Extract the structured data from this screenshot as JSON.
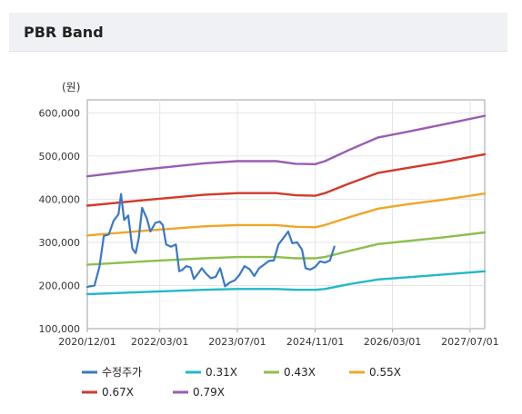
{
  "panel": {
    "title": "PBR Band"
  },
  "chart_data": {
    "type": "line",
    "unit_label": "(원)",
    "y_ticks": [
      "600,000",
      "500,000",
      "400,000",
      "300,000",
      "200,000",
      "100,000"
    ],
    "y_tick_values": [
      600000,
      500000,
      400000,
      300000,
      200000,
      100000
    ],
    "ylim": [
      100000,
      630000
    ],
    "x_ticks": [
      "2020/12/01",
      "2022/03/01",
      "2023/07/01",
      "2024/11/01",
      "2026/03/01",
      "2027/07/01"
    ],
    "x_tick_values": [
      "2020-12-01",
      "2022-03-01",
      "2023-07-01",
      "2024-11-01",
      "2026-03-01",
      "2027-07-01"
    ],
    "xlim": [
      "2020-12-01",
      "2027-10-01"
    ],
    "grid": true,
    "legend_position": "bottom",
    "series": [
      {
        "name": "수정주가",
        "color": "#3a78c6",
        "points": [
          [
            "2020-12-01",
            197000
          ],
          [
            "2021-01-15",
            200000
          ],
          [
            "2021-02-15",
            243000
          ],
          [
            "2021-03-15",
            315000
          ],
          [
            "2021-04-15",
            318000
          ],
          [
            "2021-05-15",
            350000
          ],
          [
            "2021-06-15",
            365000
          ],
          [
            "2021-07-01",
            412000
          ],
          [
            "2021-07-20",
            352000
          ],
          [
            "2021-08-15",
            362000
          ],
          [
            "2021-09-10",
            285000
          ],
          [
            "2021-10-01",
            275000
          ],
          [
            "2021-10-20",
            310000
          ],
          [
            "2021-11-10",
            380000
          ],
          [
            "2021-12-10",
            355000
          ],
          [
            "2022-01-01",
            325000
          ],
          [
            "2022-02-01",
            345000
          ],
          [
            "2022-03-01",
            348000
          ],
          [
            "2022-03-20",
            340000
          ],
          [
            "2022-04-10",
            295000
          ],
          [
            "2022-05-10",
            290000
          ],
          [
            "2022-06-10",
            295000
          ],
          [
            "2022-07-01",
            233000
          ],
          [
            "2022-07-20",
            236000
          ],
          [
            "2022-08-15",
            245000
          ],
          [
            "2022-09-10",
            242000
          ],
          [
            "2022-10-01",
            215000
          ],
          [
            "2022-11-01",
            230000
          ],
          [
            "2022-11-20",
            240000
          ],
          [
            "2022-12-15",
            228000
          ],
          [
            "2023-01-15",
            217000
          ],
          [
            "2023-02-15",
            220000
          ],
          [
            "2023-03-15",
            240000
          ],
          [
            "2023-04-15",
            198000
          ],
          [
            "2023-05-15",
            207000
          ],
          [
            "2023-06-15",
            212000
          ],
          [
            "2023-07-15",
            225000
          ],
          [
            "2023-08-15",
            245000
          ],
          [
            "2023-09-15",
            238000
          ],
          [
            "2023-10-15",
            222000
          ],
          [
            "2023-11-15",
            240000
          ],
          [
            "2023-12-15",
            248000
          ],
          [
            "2024-01-15",
            257000
          ],
          [
            "2024-02-15",
            258000
          ],
          [
            "2024-03-15",
            295000
          ],
          [
            "2024-04-15",
            310000
          ],
          [
            "2024-05-15",
            325000
          ],
          [
            "2024-06-10",
            298000
          ],
          [
            "2024-07-10",
            300000
          ],
          [
            "2024-08-10",
            283000
          ],
          [
            "2024-09-01",
            240000
          ],
          [
            "2024-10-01",
            237000
          ],
          [
            "2024-11-01",
            243000
          ],
          [
            "2024-12-01",
            256000
          ],
          [
            "2025-01-01",
            253000
          ],
          [
            "2025-02-01",
            258000
          ],
          [
            "2025-03-01",
            290000
          ]
        ]
      },
      {
        "name": "0.31X",
        "color": "#22b8c8",
        "points": [
          [
            "2020-12-01",
            180000
          ],
          [
            "2021-12-01",
            185000
          ],
          [
            "2022-12-01",
            190000
          ],
          [
            "2023-07-01",
            192000
          ],
          [
            "2024-03-01",
            192000
          ],
          [
            "2024-07-01",
            190000
          ],
          [
            "2024-11-01",
            190000
          ],
          [
            "2025-01-01",
            192000
          ],
          [
            "2025-06-01",
            203000
          ],
          [
            "2025-12-01",
            214000
          ],
          [
            "2026-06-01",
            219000
          ],
          [
            "2027-01-01",
            225000
          ],
          [
            "2027-10-01",
            233000
          ]
        ]
      },
      {
        "name": "0.43X",
        "color": "#8ebf4c",
        "points": [
          [
            "2020-12-01",
            248000
          ],
          [
            "2021-12-01",
            256000
          ],
          [
            "2022-12-01",
            263000
          ],
          [
            "2023-07-01",
            266000
          ],
          [
            "2024-03-01",
            266000
          ],
          [
            "2024-07-01",
            263000
          ],
          [
            "2024-11-01",
            263000
          ],
          [
            "2025-01-01",
            266000
          ],
          [
            "2025-06-01",
            280000
          ],
          [
            "2025-12-01",
            296000
          ],
          [
            "2026-06-01",
            303000
          ],
          [
            "2027-01-01",
            311000
          ],
          [
            "2027-10-01",
            323000
          ]
        ]
      },
      {
        "name": "0.55X",
        "color": "#f0a628",
        "points": [
          [
            "2020-12-01",
            316000
          ],
          [
            "2021-12-01",
            327000
          ],
          [
            "2022-12-01",
            337000
          ],
          [
            "2023-07-01",
            340000
          ],
          [
            "2024-03-01",
            340000
          ],
          [
            "2024-07-01",
            336000
          ],
          [
            "2024-11-01",
            335000
          ],
          [
            "2025-01-01",
            340000
          ],
          [
            "2025-06-01",
            358000
          ],
          [
            "2025-12-01",
            378000
          ],
          [
            "2026-06-01",
            388000
          ],
          [
            "2027-01-01",
            398000
          ],
          [
            "2027-10-01",
            413000
          ]
        ]
      },
      {
        "name": "0.67X",
        "color": "#d23a2c",
        "points": [
          [
            "2020-12-01",
            385000
          ],
          [
            "2021-12-01",
            398000
          ],
          [
            "2022-12-01",
            410000
          ],
          [
            "2023-07-01",
            414000
          ],
          [
            "2024-03-01",
            414000
          ],
          [
            "2024-07-01",
            409000
          ],
          [
            "2024-11-01",
            408000
          ],
          [
            "2025-01-01",
            414000
          ],
          [
            "2025-06-01",
            436000
          ],
          [
            "2025-12-01",
            461000
          ],
          [
            "2026-06-01",
            472000
          ],
          [
            "2027-01-01",
            485000
          ],
          [
            "2027-10-01",
            504000
          ]
        ]
      },
      {
        "name": "0.79X",
        "color": "#9a5cb4",
        "points": [
          [
            "2020-12-01",
            453000
          ],
          [
            "2021-12-01",
            469000
          ],
          [
            "2022-12-01",
            483000
          ],
          [
            "2023-07-01",
            488000
          ],
          [
            "2024-03-01",
            488000
          ],
          [
            "2024-07-01",
            482000
          ],
          [
            "2024-11-01",
            481000
          ],
          [
            "2025-01-01",
            488000
          ],
          [
            "2025-06-01",
            514000
          ],
          [
            "2025-12-01",
            543000
          ],
          [
            "2026-06-01",
            556000
          ],
          [
            "2027-01-01",
            572000
          ],
          [
            "2027-10-01",
            593000
          ]
        ]
      }
    ]
  }
}
